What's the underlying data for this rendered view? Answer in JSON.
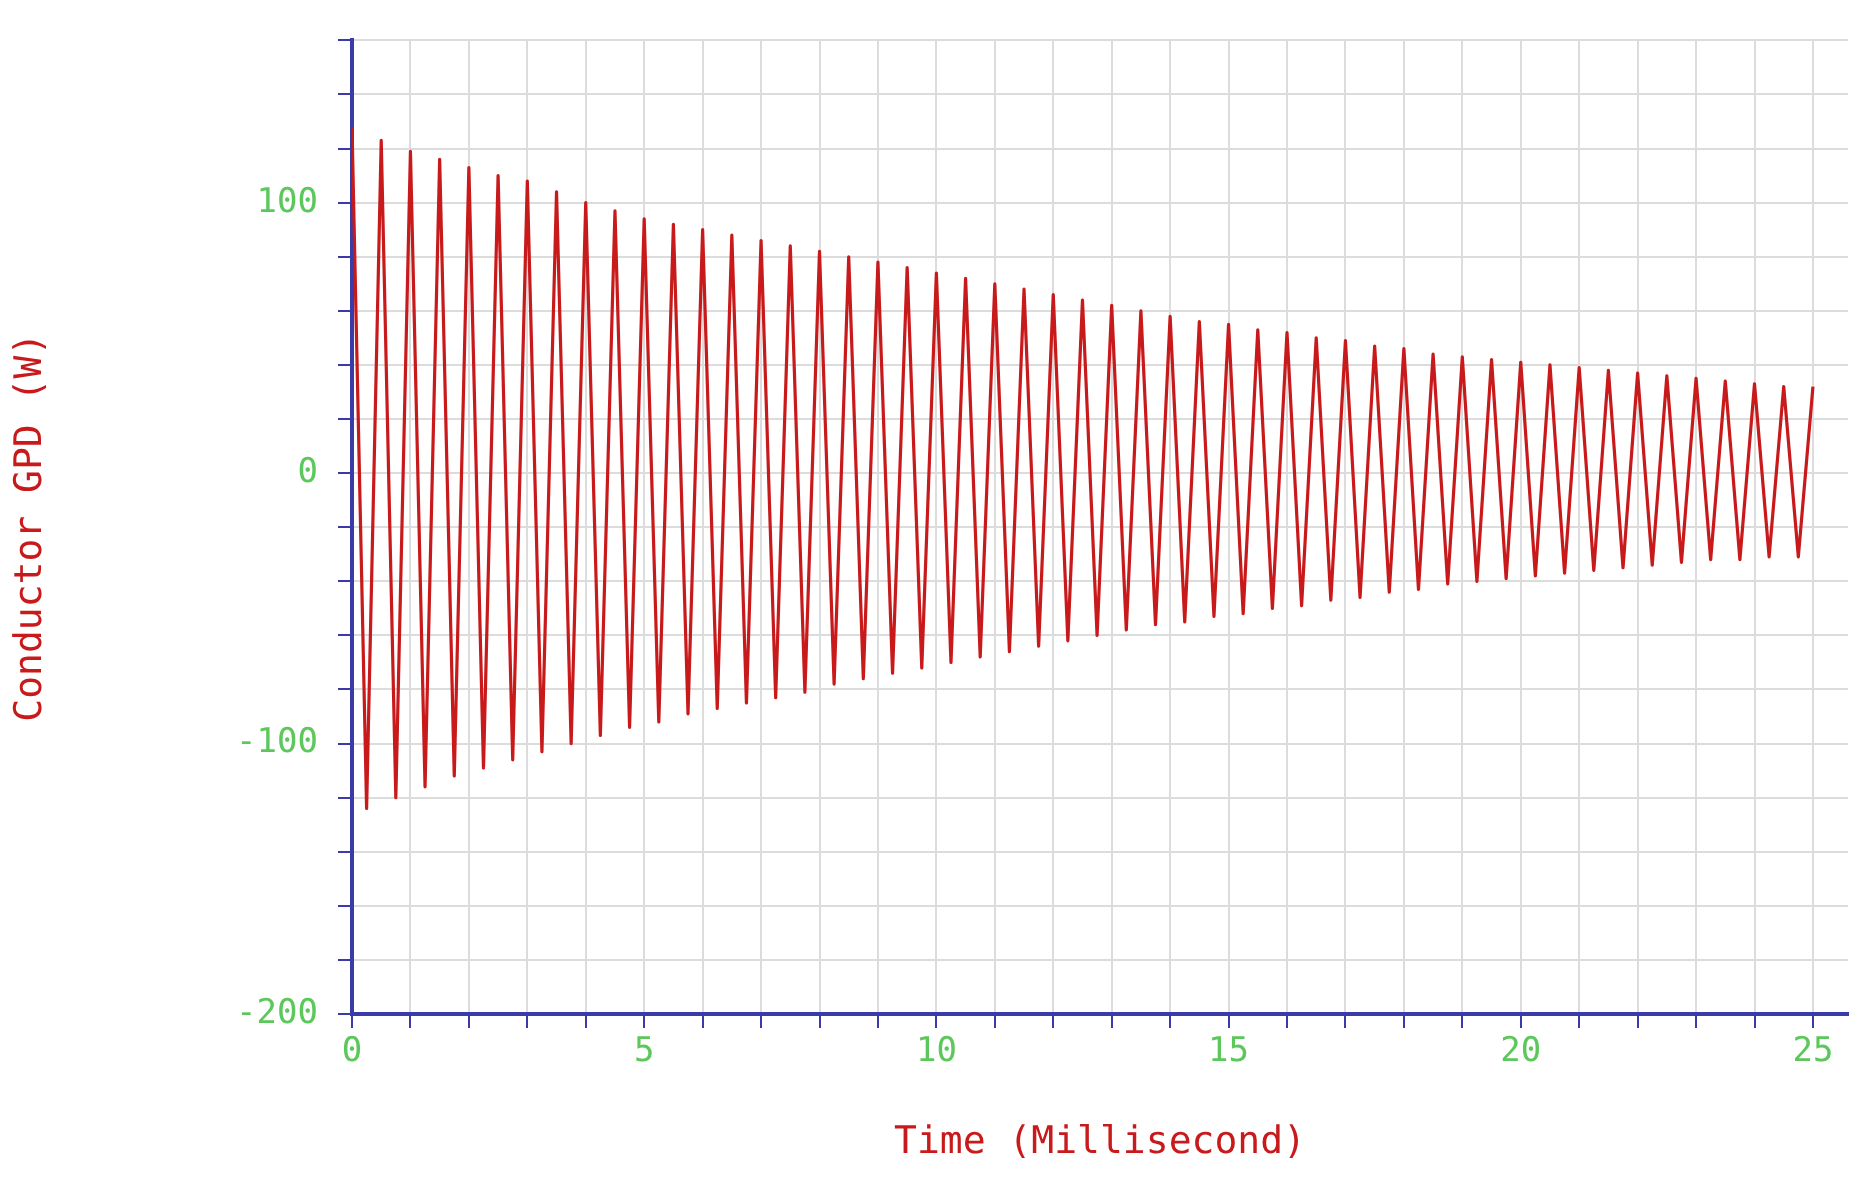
{
  "chart_data": {
    "type": "line",
    "xlabel": "Time (Millisecond)",
    "ylabel": "Conductor GPD (W)",
    "xlim": [
      0,
      25.6
    ],
    "ylim": [
      -200,
      160
    ],
    "xticks": [
      0,
      {
        "value": 1,
        "label": null
      },
      {
        "value": 2,
        "label": null
      },
      {
        "value": 3,
        "label": null
      },
      {
        "value": 4,
        "label": null
      },
      5,
      {
        "value": 6,
        "label": null
      },
      {
        "value": 7,
        "label": null
      },
      {
        "value": 8,
        "label": null
      },
      {
        "value": 9,
        "label": null
      },
      10,
      {
        "value": 11,
        "label": null
      },
      {
        "value": 12,
        "label": null
      },
      {
        "value": 13,
        "label": null
      },
      {
        "value": 14,
        "label": null
      },
      15,
      {
        "value": 16,
        "label": null
      },
      {
        "value": 17,
        "label": null
      },
      {
        "value": 18,
        "label": null
      },
      {
        "value": 19,
        "label": null
      },
      20,
      {
        "value": 21,
        "label": null
      },
      {
        "value": 22,
        "label": null
      },
      {
        "value": 23,
        "label": null
      },
      {
        "value": 24,
        "label": null
      },
      25
    ],
    "yticks": [
      -200,
      {
        "value": -180,
        "label": null
      },
      {
        "value": -160,
        "label": null
      },
      {
        "value": -140,
        "label": null
      },
      {
        "value": -120,
        "label": null
      },
      -100,
      {
        "value": -80,
        "label": null
      },
      {
        "value": -60,
        "label": null
      },
      {
        "value": -40,
        "label": null
      },
      {
        "value": -20,
        "label": null
      },
      0,
      {
        "value": 20,
        "label": null
      },
      {
        "value": 40,
        "label": null
      },
      {
        "value": 60,
        "label": null
      },
      {
        "value": 80,
        "label": null
      },
      100,
      {
        "value": 120,
        "label": null
      },
      {
        "value": 140,
        "label": null
      },
      {
        "value": 160,
        "label": null
      }
    ],
    "grid": true,
    "legend": false,
    "marker": "none",
    "line_style": "solid",
    "x": [
      0,
      0.25,
      0.5,
      0.75,
      1,
      1.25,
      1.5,
      1.75,
      2,
      2.25,
      2.5,
      2.75,
      3,
      3.25,
      3.5,
      3.75,
      4,
      4.25,
      4.5,
      4.75,
      5,
      5.25,
      5.5,
      5.75,
      6,
      6.25,
      6.5,
      6.75,
      7,
      7.25,
      7.5,
      7.75,
      8,
      8.25,
      8.5,
      8.75,
      9,
      9.25,
      9.5,
      9.75,
      10,
      10.25,
      10.5,
      10.75,
      11,
      11.25,
      11.5,
      11.75,
      12,
      12.25,
      12.5,
      12.75,
      13,
      13.25,
      13.5,
      13.75,
      14,
      14.25,
      14.5,
      14.75,
      15,
      15.25,
      15.5,
      15.75,
      16,
      16.25,
      16.5,
      16.75,
      17,
      17.25,
      17.5,
      17.75,
      18,
      18.25,
      18.5,
      18.75,
      19,
      19.25,
      19.5,
      19.75,
      20,
      20.25,
      20.5,
      20.75,
      21,
      21.25,
      21.5,
      21.75,
      22,
      22.25,
      22.5,
      22.75,
      23,
      23.25,
      23.5,
      23.75,
      24,
      24.25,
      24.5,
      24.75,
      25
    ],
    "series": [
      {
        "color": "#c8191b",
        "values": [
          128,
          -124,
          123,
          -120,
          119,
          -116,
          116,
          -112,
          113,
          -109,
          110,
          -106,
          108,
          -103,
          104,
          -100,
          100,
          -97,
          97,
          -94,
          94,
          -92,
          92,
          -89,
          90,
          -87,
          88,
          -85,
          86,
          -83,
          84,
          -81,
          82,
          -78,
          80,
          -76,
          78,
          -74,
          76,
          -72,
          74,
          -70,
          72,
          -68,
          70,
          -66,
          68,
          -64,
          66,
          -62,
          64,
          -60,
          62,
          -58,
          60,
          -56,
          58,
          -55,
          56,
          -53,
          55,
          -52,
          53,
          -50,
          52,
          -49,
          50,
          -47,
          49,
          -46,
          47,
          -44,
          46,
          -43,
          44,
          -41,
          43,
          -40,
          42,
          -39,
          41,
          -38,
          40,
          -37,
          39,
          -36,
          38,
          -35,
          37,
          -34,
          36,
          -33,
          35,
          -32,
          34,
          -32,
          33,
          -31,
          32,
          -31,
          32
        ]
      }
    ]
  }
}
